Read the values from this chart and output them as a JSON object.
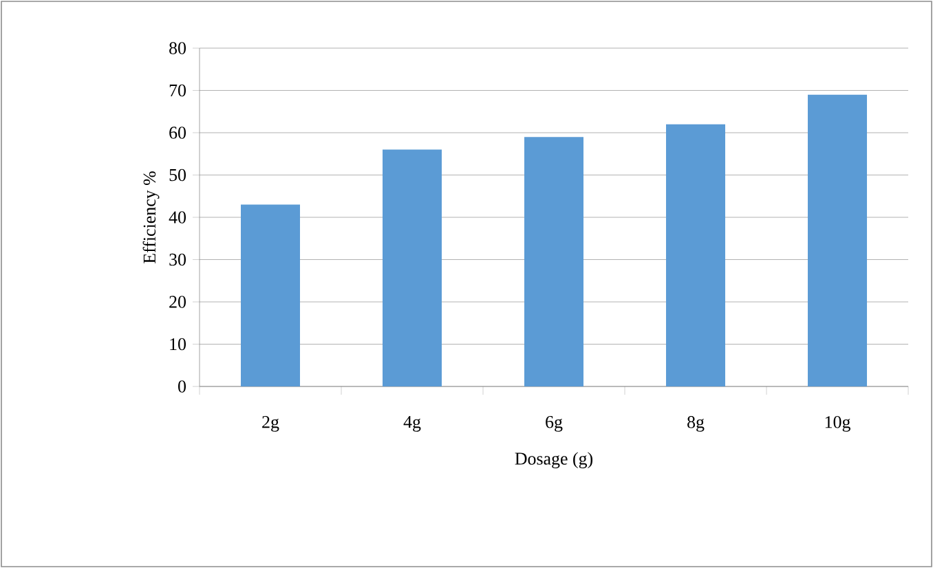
{
  "chart_data": {
    "type": "bar",
    "xlabel": "Dosage (g)",
    "ylabel": "Efficiency %",
    "categories": [
      "2g",
      "4g",
      "6g",
      "8g",
      "10g"
    ],
    "values": [
      43,
      56,
      59,
      62,
      69
    ],
    "color": "#5b9bd5",
    "ylim": [
      0,
      80
    ],
    "yticks": [
      0,
      10,
      20,
      30,
      40,
      50,
      60,
      70,
      80
    ],
    "grid": "y"
  }
}
